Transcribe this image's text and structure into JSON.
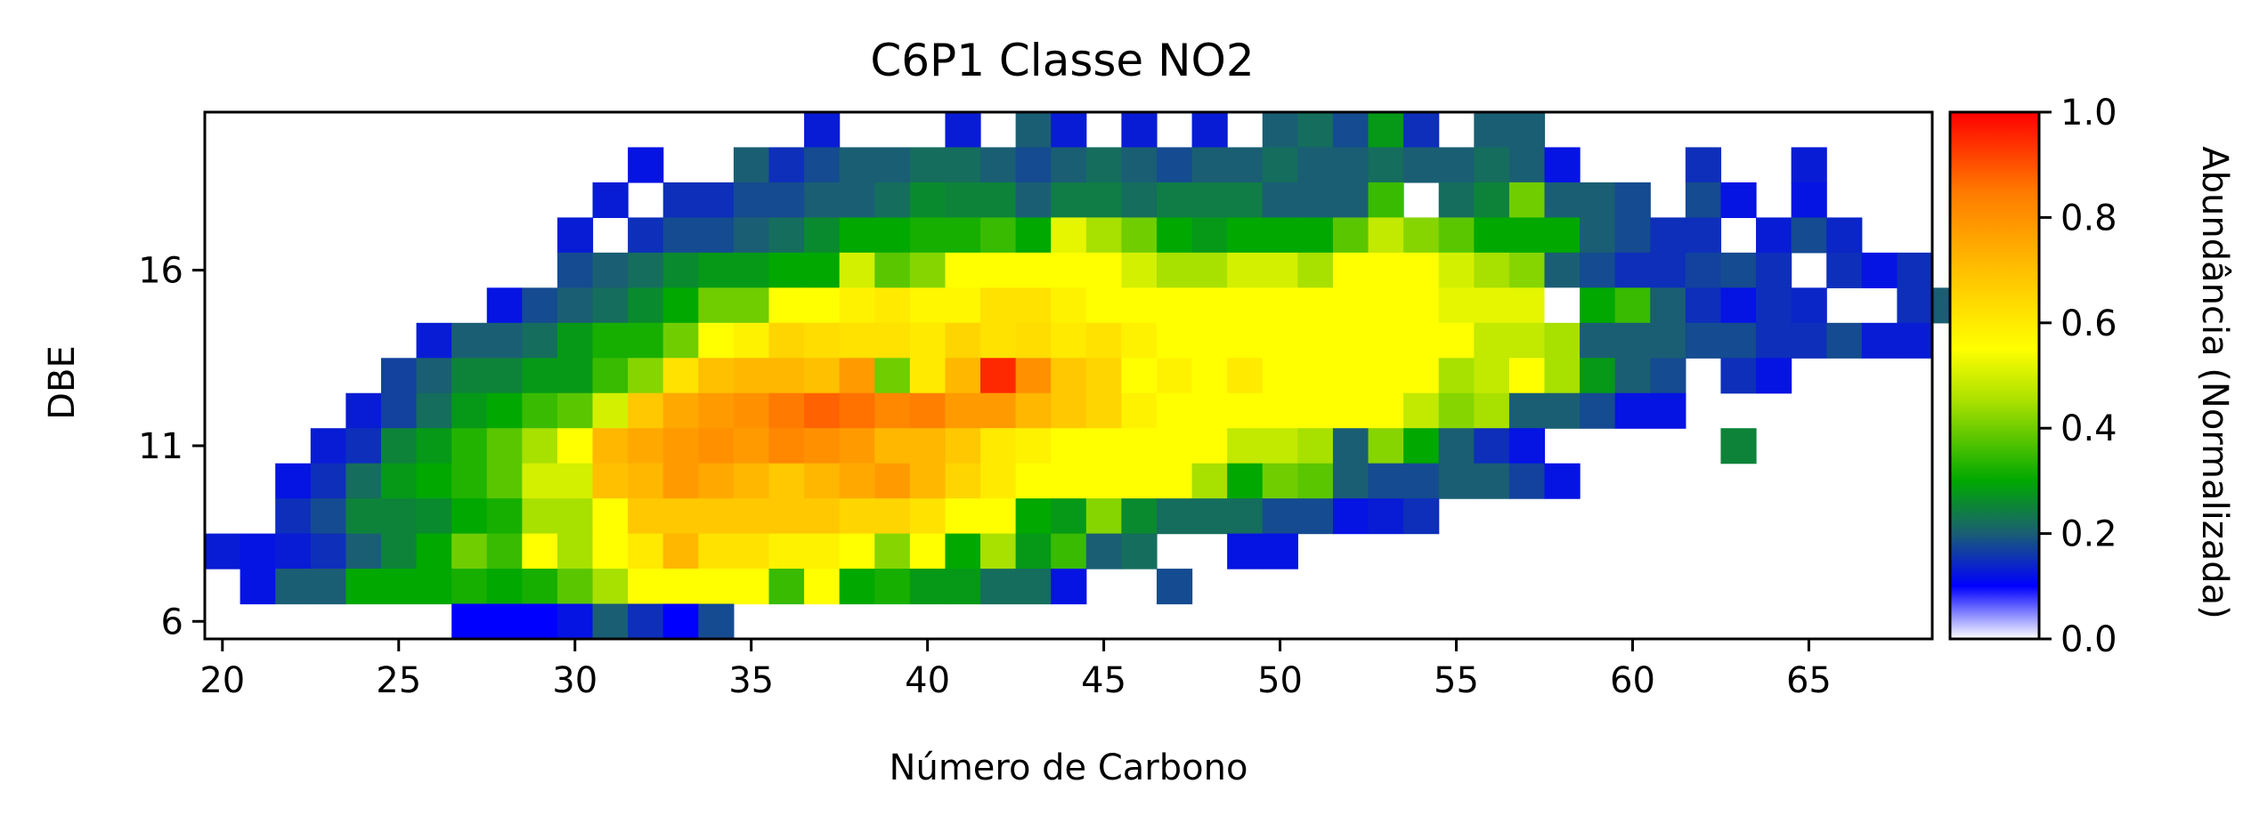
{
  "chart_data": {
    "type": "heatmap",
    "title": "C6P1 Classe NO2",
    "xlabel": "Número de Carbono",
    "ylabel": "DBE",
    "xlim": [
      19.5,
      68.5
    ],
    "ylim": [
      5.5,
      20.5
    ],
    "xticks": [
      "20",
      "25",
      "30",
      "35",
      "40",
      "45",
      "50",
      "55",
      "60",
      "65"
    ],
    "xtick_values": [
      20,
      25,
      30,
      35,
      40,
      45,
      50,
      55,
      60,
      65
    ],
    "yticks": [
      "6",
      "11",
      "16"
    ],
    "ytick_values": [
      6,
      11,
      16
    ],
    "colorbar": {
      "label": "Abundância (Normalizada)",
      "range": [
        0,
        1
      ],
      "ticks": [
        "0.0",
        "0.2",
        "0.4",
        "0.6",
        "0.8",
        "1.0"
      ],
      "tick_values": [
        0,
        0.2,
        0.4,
        0.6,
        0.8,
        1.0
      ],
      "stops": [
        {
          "v": 0.0,
          "color": "#ffffff"
        },
        {
          "v": 0.1,
          "color": "#0000ff"
        },
        {
          "v": 0.2,
          "color": "#1a5e74"
        },
        {
          "v": 0.3,
          "color": "#00a800"
        },
        {
          "v": 0.45,
          "color": "#a8e000"
        },
        {
          "v": 0.55,
          "color": "#ffff00"
        },
        {
          "v": 0.7,
          "color": "#ffc000"
        },
        {
          "v": 0.85,
          "color": "#ff7a00"
        },
        {
          "v": 1.0,
          "color": "#ff0000"
        }
      ]
    },
    "rows": [
      {
        "dbe": 20,
        "start": 37,
        "values": [
          0.13,
          null,
          null,
          null,
          0.13,
          null,
          0.2,
          0.13,
          null,
          0.13,
          null,
          0.13,
          null,
          0.2,
          0.22,
          0.18,
          0.28,
          0.15,
          null,
          0.2,
          0.2
        ]
      },
      {
        "dbe": 19,
        "start": 32,
        "values": [
          0.12,
          null,
          null,
          0.2,
          0.15,
          0.18,
          0.2,
          0.2,
          0.22,
          0.22,
          0.2,
          0.18,
          0.2,
          0.22,
          0.2,
          0.18,
          0.2,
          0.2,
          0.22,
          0.2,
          0.2,
          0.22,
          0.2,
          0.2,
          0.22,
          0.2,
          0.12,
          null,
          null,
          null,
          0.15,
          null,
          null,
          0.13
        ]
      },
      {
        "dbe": 18,
        "start": 31,
        "values": [
          0.13,
          null,
          0.15,
          0.15,
          0.18,
          0.18,
          0.2,
          0.2,
          0.22,
          0.26,
          0.25,
          0.25,
          0.2,
          0.24,
          0.24,
          0.22,
          0.24,
          0.24,
          0.24,
          0.2,
          0.2,
          0.2,
          0.35,
          null,
          0.22,
          0.25,
          0.4,
          0.2,
          0.2,
          0.18,
          null,
          0.18,
          0.12,
          null,
          0.12
        ]
      },
      {
        "dbe": 17,
        "start": 30,
        "values": [
          0.13,
          null,
          0.15,
          0.18,
          0.18,
          0.2,
          0.22,
          0.26,
          0.3,
          0.3,
          0.32,
          0.32,
          0.35,
          0.3,
          0.52,
          0.45,
          0.4,
          0.3,
          0.28,
          0.3,
          0.3,
          0.3,
          0.38,
          0.48,
          0.42,
          0.38,
          0.3,
          0.3,
          0.3,
          0.2,
          0.18,
          0.15,
          0.15,
          null,
          0.13,
          0.18,
          0.14
        ]
      },
      {
        "dbe": 16,
        "start": 30,
        "values": [
          0.18,
          0.2,
          0.22,
          0.26,
          0.28,
          0.28,
          0.3,
          0.3,
          0.5,
          0.38,
          0.42,
          0.55,
          0.55,
          0.55,
          0.55,
          0.55,
          0.5,
          0.45,
          0.45,
          0.5,
          0.5,
          0.45,
          0.55,
          0.55,
          0.55,
          0.5,
          0.45,
          0.42,
          0.2,
          0.18,
          0.15,
          0.15,
          0.17,
          0.18,
          0.15,
          null,
          0.15,
          0.12,
          0.15
        ]
      },
      {
        "dbe": 15,
        "start": 28,
        "values": [
          0.12,
          0.18,
          0.2,
          0.22,
          0.26,
          0.3,
          0.4,
          0.4,
          0.55,
          0.55,
          0.58,
          0.6,
          0.57,
          0.57,
          0.62,
          0.62,
          0.58,
          0.55,
          0.55,
          0.55,
          0.55,
          0.55,
          0.55,
          0.55,
          0.55,
          0.55,
          0.55,
          0.52,
          0.52,
          0.52,
          0.0,
          0.3,
          0.35,
          0.2,
          0.15,
          0.12,
          0.15,
          0.14,
          null,
          null,
          0.15,
          0.2
        ]
      },
      {
        "dbe": 14,
        "start": 26,
        "values": [
          0.13,
          0.2,
          0.2,
          0.22,
          0.28,
          0.32,
          0.32,
          0.4,
          0.55,
          0.58,
          0.65,
          0.63,
          0.62,
          0.62,
          0.6,
          0.65,
          0.62,
          0.63,
          0.6,
          0.62,
          0.58,
          0.55,
          0.55,
          0.55,
          0.55,
          0.55,
          0.55,
          0.55,
          0.55,
          0.55,
          0.48,
          0.48,
          0.45,
          0.2,
          0.2,
          0.2,
          0.18,
          0.18,
          0.15,
          0.15,
          0.18,
          0.13,
          0.13
        ]
      },
      {
        "dbe": 13,
        "start": 25,
        "values": [
          0.17,
          0.2,
          0.25,
          0.25,
          0.28,
          0.28,
          0.35,
          0.42,
          0.62,
          0.7,
          0.72,
          0.72,
          0.7,
          0.78,
          0.4,
          0.6,
          0.72,
          0.95,
          0.8,
          0.68,
          0.65,
          0.55,
          0.58,
          0.55,
          0.6,
          0.55,
          0.55,
          0.55,
          0.55,
          0.55,
          0.45,
          0.48,
          0.55,
          0.45,
          0.28,
          0.2,
          0.18,
          null,
          0.15,
          0.12,
          null,
          null,
          null,
          null,
          null,
          0.13
        ]
      },
      {
        "dbe": 12,
        "start": 24,
        "values": [
          0.13,
          0.17,
          0.22,
          0.28,
          0.3,
          0.35,
          0.38,
          0.5,
          0.68,
          0.75,
          0.78,
          0.8,
          0.85,
          0.88,
          0.86,
          0.82,
          0.84,
          0.78,
          0.78,
          0.72,
          0.68,
          0.65,
          0.58,
          0.55,
          0.55,
          0.55,
          0.55,
          0.55,
          0.55,
          0.55,
          0.48,
          0.42,
          0.45,
          0.2,
          0.2,
          0.18,
          0.12,
          0.12
        ]
      },
      {
        "dbe": 11,
        "start": 23,
        "values": [
          0.13,
          0.15,
          0.25,
          0.28,
          0.33,
          0.38,
          0.45,
          0.55,
          0.72,
          0.75,
          0.78,
          0.8,
          0.78,
          0.82,
          0.8,
          0.78,
          0.72,
          0.72,
          0.68,
          0.6,
          0.58,
          0.55,
          0.55,
          0.55,
          0.55,
          0.55,
          0.48,
          0.48,
          0.45,
          0.2,
          0.42,
          0.3,
          0.2,
          0.15,
          0.12,
          null,
          null,
          null,
          null,
          null,
          0.25
        ]
      },
      {
        "dbe": 10,
        "start": 22,
        "values": [
          0.12,
          0.15,
          0.22,
          0.28,
          0.3,
          0.33,
          0.38,
          0.5,
          0.5,
          0.7,
          0.72,
          0.78,
          0.75,
          0.72,
          0.68,
          0.72,
          0.75,
          0.78,
          0.72,
          0.65,
          0.6,
          0.55,
          0.55,
          0.55,
          0.55,
          0.55,
          0.45,
          0.3,
          0.4,
          0.38,
          0.2,
          0.18,
          0.18,
          0.2,
          0.2,
          0.17,
          0.12
        ]
      },
      {
        "dbe": 9,
        "start": 22,
        "values": [
          0.15,
          0.18,
          0.25,
          0.25,
          0.26,
          0.3,
          0.32,
          0.45,
          0.45,
          0.55,
          0.68,
          0.68,
          0.68,
          0.68,
          0.68,
          0.68,
          0.65,
          0.65,
          0.62,
          0.55,
          0.55,
          0.3,
          0.28,
          0.42,
          0.26,
          0.22,
          0.22,
          0.22,
          0.18,
          0.18,
          0.12,
          0.13,
          0.15
        ]
      },
      {
        "dbe": 8,
        "start": 20,
        "values": [
          0.13,
          0.12,
          0.13,
          0.15,
          0.2,
          0.25,
          0.3,
          0.4,
          0.35,
          0.55,
          0.45,
          0.55,
          0.6,
          0.72,
          0.62,
          0.62,
          0.58,
          0.58,
          0.55,
          0.42,
          0.55,
          0.3,
          0.45,
          0.28,
          0.35,
          0.2,
          0.22,
          null,
          null,
          0.12,
          0.12
        ]
      },
      {
        "dbe": 7,
        "start": 21,
        "values": [
          0.12,
          0.2,
          0.2,
          0.3,
          0.3,
          0.3,
          0.32,
          0.3,
          0.32,
          0.38,
          0.45,
          0.55,
          0.55,
          0.55,
          0.55,
          0.35,
          0.55,
          0.3,
          0.32,
          0.28,
          0.28,
          0.22,
          0.22,
          0.12,
          null,
          null,
          0.18
        ]
      },
      {
        "dbe": 6,
        "start": 27,
        "values": [
          0.1,
          0.1,
          0.1,
          0.12,
          0.2,
          0.15,
          0.1,
          0.18
        ]
      }
    ]
  }
}
